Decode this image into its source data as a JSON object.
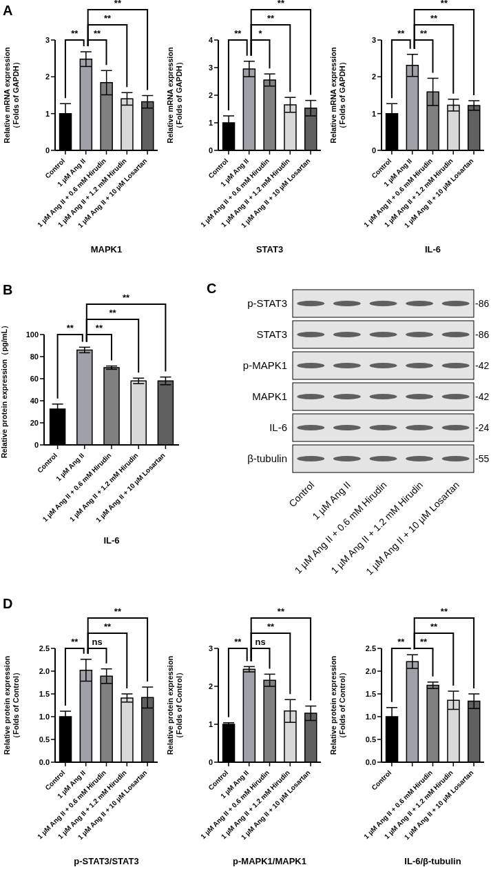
{
  "chart_data": [
    {
      "type": "bar",
      "title": "A",
      "xlabel": "MAPK1",
      "ylabel": "Relative mRNA expression\n（Folds of GAPDH）",
      "categories": [
        "Control",
        "1 µM Ang II",
        "1 µM Ang II + 0.6 mM Hirudin",
        "1 µM Ang II + 1.2 mM Hirudin",
        "1 µM Ang II + 10 µM Losartan"
      ],
      "values": [
        1.0,
        2.48,
        1.84,
        1.4,
        1.32
      ],
      "errors": [
        0.27,
        0.2,
        0.33,
        0.17,
        0.17
      ],
      "colors": [
        "#000000",
        "#a0a0a8",
        "#808080",
        "#d8d8d8",
        "#606060"
      ],
      "ylim": [
        0,
        3
      ],
      "yticks": [
        0,
        1,
        2,
        3
      ],
      "annotations": [
        "**",
        "**",
        "**",
        "**"
      ]
    },
    {
      "type": "bar",
      "xlabel": "STAT3",
      "ylabel": "Relative mRNA expression\n（Folds of GAPDH）",
      "categories": [
        "Control",
        "1 µM Ang II",
        "1 µM Ang II + 0.6 mM Hirudin",
        "1 µM Ang II + 1.2 mM Hirudin",
        "1 µM Ang II + 10 µM Losartan"
      ],
      "values": [
        1.0,
        2.95,
        2.55,
        1.65,
        1.53
      ],
      "errors": [
        0.25,
        0.28,
        0.22,
        0.27,
        0.28
      ],
      "colors": [
        "#000000",
        "#a0a0a8",
        "#808080",
        "#d8d8d8",
        "#606060"
      ],
      "ylim": [
        0,
        4
      ],
      "yticks": [
        0,
        1,
        2,
        3,
        4
      ],
      "annotations": [
        "**",
        "*",
        "**",
        "**"
      ]
    },
    {
      "type": "bar",
      "xlabel": "IL-6",
      "ylabel": "Relative mRNA expression\n（Folds of GAPDH）",
      "categories": [
        "Control",
        "1 µM Ang II",
        "1 µM Ang II + 0.6 mM Hirudin",
        "1 µM Ang II + 1.2 mM Hirudin",
        "1 µM Ang II + 10 µM Losartan"
      ],
      "values": [
        1.0,
        2.31,
        1.59,
        1.23,
        1.22
      ],
      "errors": [
        0.27,
        0.3,
        0.37,
        0.16,
        0.13
      ],
      "colors": [
        "#000000",
        "#a0a0a8",
        "#808080",
        "#d8d8d8",
        "#606060"
      ],
      "ylim": [
        0,
        3
      ],
      "yticks": [
        0,
        1,
        2,
        3
      ],
      "annotations": [
        "**",
        "**",
        "**",
        "**"
      ]
    },
    {
      "type": "bar",
      "title": "B",
      "xlabel": "IL-6",
      "ylabel": "Relative protein expression（pg/mL）",
      "categories": [
        "Control",
        "1 µM Ang II",
        "1 µM Ang II + 0.6 mM Hirudin",
        "1 µM Ang II + 1.2 mM Hirudin",
        "1 µM Ang II + 10 µM Losartan"
      ],
      "values": [
        32.5,
        86,
        70,
        58,
        58
      ],
      "errors": [
        4.5,
        2.5,
        1.5,
        2.5,
        3.5
      ],
      "colors": [
        "#000000",
        "#a0a0a8",
        "#808080",
        "#d8d8d8",
        "#606060"
      ],
      "ylim": [
        0,
        100
      ],
      "yticks": [
        0,
        20,
        40,
        60,
        80,
        100
      ],
      "annotations": [
        "**",
        "**",
        "**",
        "**"
      ]
    },
    {
      "type": "other",
      "title": "C",
      "categories": [
        "Control",
        "1 µM Ang II",
        "1 µM Ang II + 0.6 mM Hirudin",
        "1 µM Ang II + 1.2 mM Hirudin",
        "1 µM Ang II + 10 µM Losartan"
      ],
      "y_categories": [
        "p-STAT3",
        "STAT3",
        "p-MAPK1",
        "MAPK1",
        "IL-6",
        "β-tubulin"
      ],
      "y2_categories": [
        "-86",
        "-86",
        "-42",
        "-42",
        "-24",
        "-55"
      ]
    },
    {
      "type": "bar",
      "title": "D",
      "xlabel": "p-STAT3/STAT3",
      "ylabel": "Relative protein expression\n（Folds of Control）",
      "categories": [
        "Control",
        "1 µM Ang II",
        "1 µM Ang II + 0.6 mM Hirudin",
        "1 µM Ang II + 1.2 mM Hirudin",
        "1 µM Ang II + 10 µM Losartan"
      ],
      "values": [
        1.0,
        2.02,
        1.89,
        1.41,
        1.42
      ],
      "errors": [
        0.12,
        0.24,
        0.16,
        0.09,
        0.23
      ],
      "colors": [
        "#000000",
        "#a0a0a8",
        "#808080",
        "#d8d8d8",
        "#606060"
      ],
      "ylim": [
        0,
        2.5
      ],
      "yticks": [
        {
          "value": 0,
          "label": "0.0"
        },
        0.5,
        {
          "value": 1,
          "label": "1.0"
        },
        1.5,
        {
          "value": 2,
          "label": "2.0"
        },
        2.5
      ],
      "annotations": [
        "**",
        "ns",
        "**",
        "**"
      ]
    },
    {
      "type": "bar",
      "xlabel": "p-MAPK1/MAPK1",
      "ylabel": "Relative protein expression\n（Folds of Control）",
      "categories": [
        "Control",
        "1 µM Ang II",
        "1 µM Ang II + 0.6 mM Hirudin",
        "1 µM Ang II + 1.2 mM Hirudin",
        "1 µM Ang II + 10 µM Losartan"
      ],
      "values": [
        1.0,
        2.45,
        2.16,
        1.35,
        1.29
      ],
      "errors": [
        0.04,
        0.07,
        0.16,
        0.3,
        0.19
      ],
      "colors": [
        "#000000",
        "#a0a0a8",
        "#808080",
        "#d8d8d8",
        "#606060"
      ],
      "ylim": [
        0,
        3
      ],
      "yticks": [
        0,
        1,
        2,
        3
      ],
      "annotations": [
        "**",
        "ns",
        "**",
        "**"
      ]
    },
    {
      "type": "bar",
      "xlabel": "IL-6/β-tubulin",
      "ylabel": "Relative protein expression\n（Folds of Control）",
      "categories": [
        "Control",
        null,
        "1 µM Ang II + 0.6 mM Hirudin",
        "1 µM Ang II + 1.2 mM Hirudin",
        "1 µM Ang II + 10 µM Losartan"
      ],
      "values": [
        1.0,
        2.21,
        1.69,
        1.36,
        1.34
      ],
      "errors": [
        0.2,
        0.15,
        0.07,
        0.2,
        0.16
      ],
      "colors": [
        "#000000",
        "#a0a0a8",
        "#808080",
        "#d8d8d8",
        "#606060"
      ],
      "ylim": [
        0,
        2.5
      ],
      "yticks": [
        {
          "value": 0,
          "label": "0.0"
        },
        0.5,
        {
          "value": 1,
          "label": "1.0"
        },
        1.5,
        {
          "value": 2,
          "label": "2.0"
        },
        2.5
      ],
      "annotations": [
        "**",
        "**",
        "**",
        "**"
      ]
    }
  ]
}
